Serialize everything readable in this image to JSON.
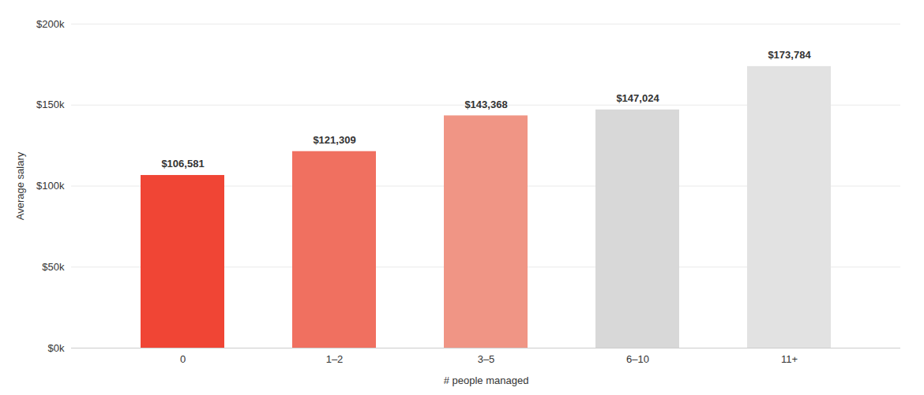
{
  "chart_data": {
    "type": "bar",
    "categories": [
      "0",
      "1–2",
      "3–5",
      "6–10",
      "11+"
    ],
    "values": [
      106581,
      121309,
      143368,
      147024,
      173784
    ],
    "value_labels": [
      "$106,581",
      "$121,309",
      "$143,368",
      "$147,024",
      "$173,784"
    ],
    "colors": [
      "#f04535",
      "#f07060",
      "#f09585",
      "#d8d8d8",
      "#e2e2e2"
    ],
    "xlabel": "# people managed",
    "ylabel": "Average salary",
    "ylim": [
      0,
      200000
    ],
    "yticks": [
      {
        "value": 0,
        "label": "$0k"
      },
      {
        "value": 50000,
        "label": "$50k"
      },
      {
        "value": 100000,
        "label": "$100k"
      },
      {
        "value": 150000,
        "label": "$150k"
      },
      {
        "value": 200000,
        "label": "$200k"
      }
    ],
    "grid": true,
    "data_labels": true
  }
}
